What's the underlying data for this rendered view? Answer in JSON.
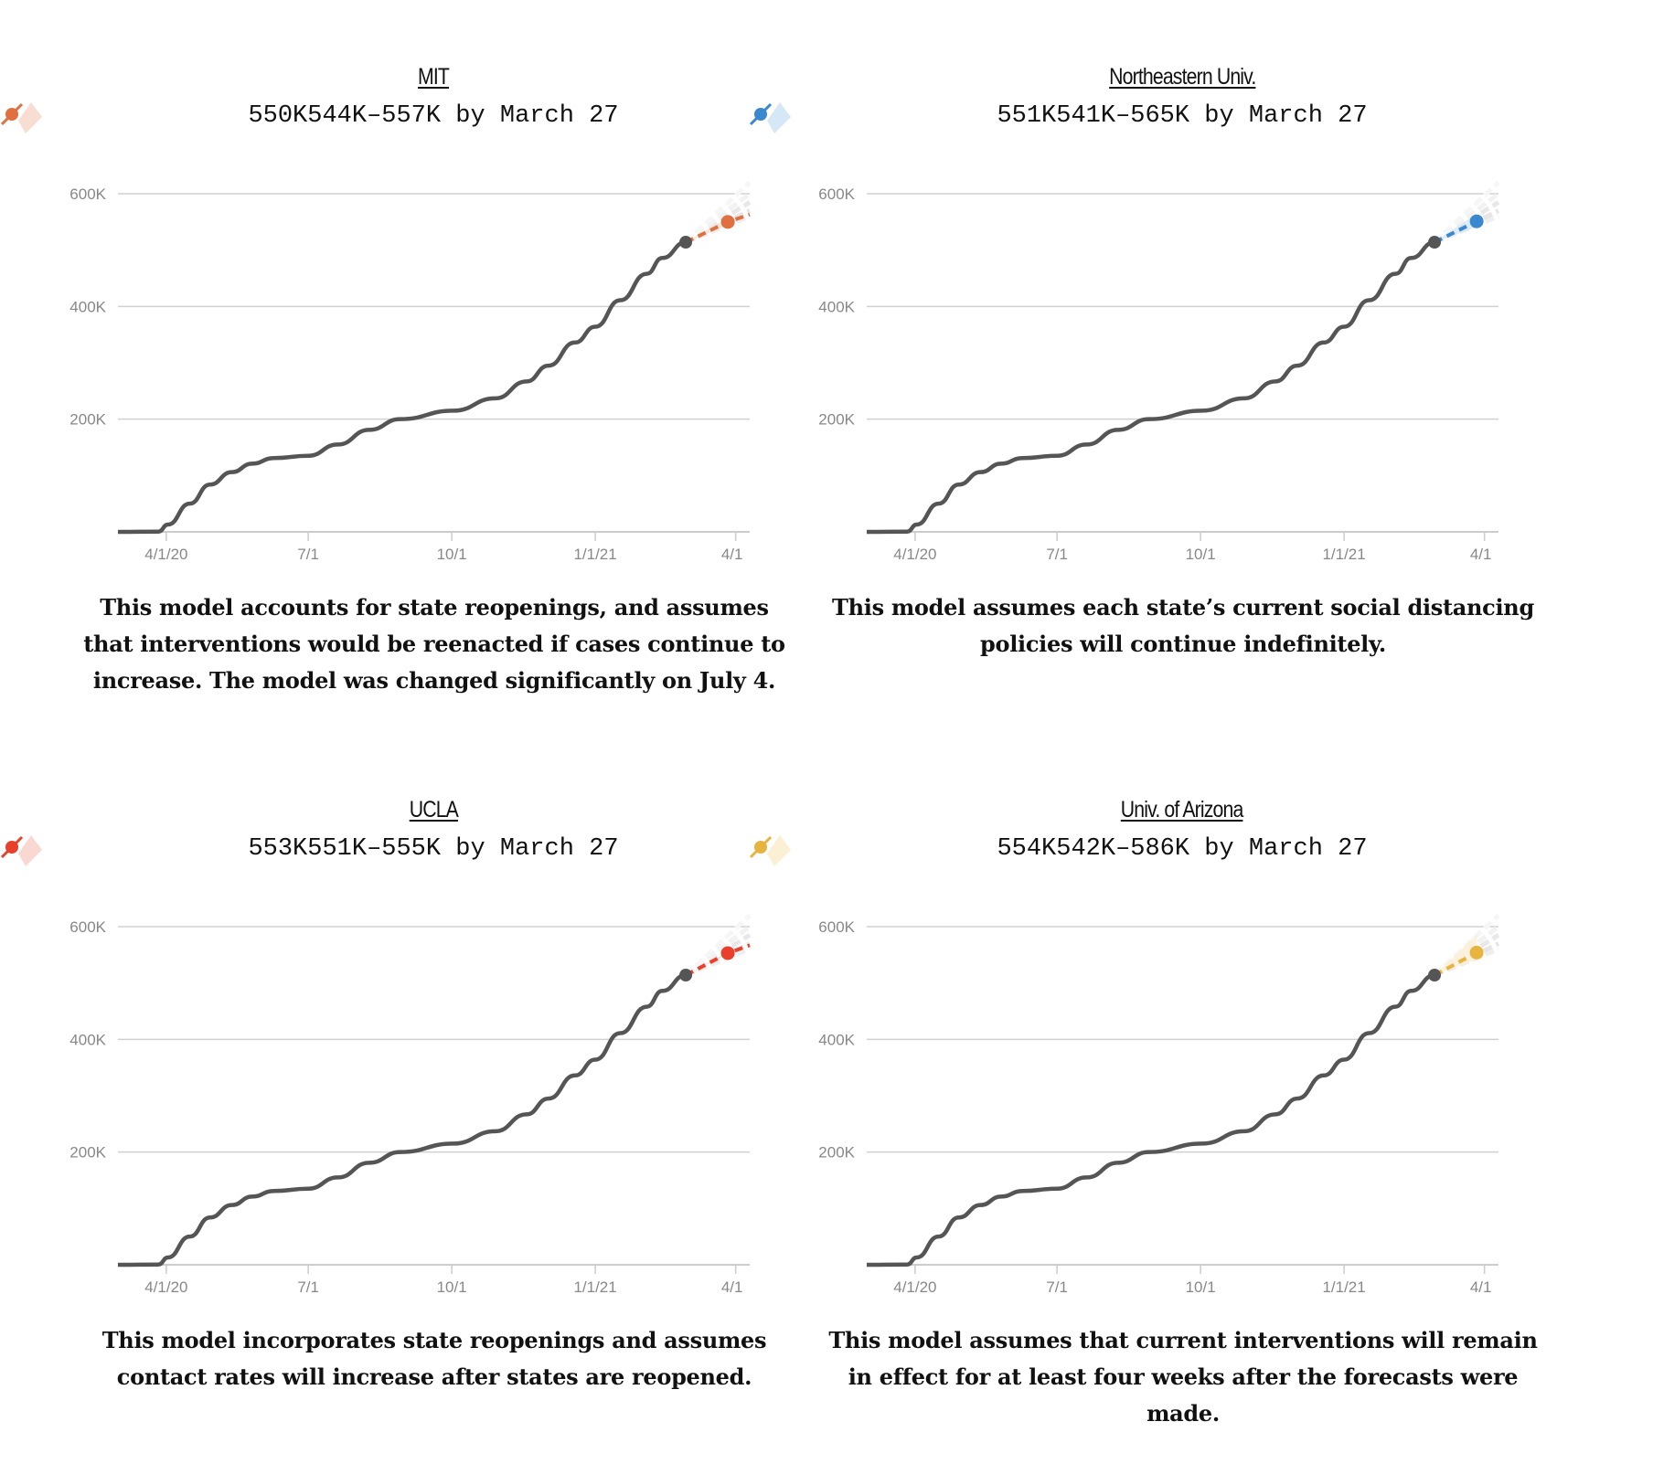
{
  "observed": {
    "dates": [
      "2020-03-01",
      "2020-03-27",
      "2020-04-02",
      "2020-04-16",
      "2020-04-29",
      "2020-05-13",
      "2020-05-26",
      "2020-06-09",
      "2020-07-01",
      "2020-07-20",
      "2020-08-09",
      "2020-08-29",
      "2020-10-02",
      "2020-10-29",
      "2020-11-18",
      "2020-12-02",
      "2020-12-19",
      "2021-01-01",
      "2021-01-17",
      "2021-02-03",
      "2021-02-13",
      "2021-02-28"
    ],
    "values_k": [
      0,
      0.5,
      13,
      50,
      84,
      106,
      121,
      131,
      135,
      155,
      181,
      200,
      215,
      237,
      267,
      295,
      336,
      364,
      411,
      458,
      486,
      514
    ]
  },
  "chart_data": [
    {
      "type": "line",
      "title": "MIT",
      "color": "#e07040",
      "light": "#f8ddd2",
      "point_label": "550K",
      "range_label": "544K–557K by March 27",
      "forecast_date": "2021-03-27",
      "forecast_k": 550,
      "low_k": 544,
      "high_k": 557,
      "extend_date": "2021-04-10",
      "extend_k": 563,
      "caption": "This model accounts for state reopenings, and assumes that interventions would be reenacted if cases continue to increase. The model was changed significantly on July 4.",
      "x_ticks": [
        "4/1/20",
        "7/1",
        "10/1",
        "1/1/21",
        "4/1"
      ],
      "y_ticks": [
        "200K",
        "400K",
        "600K"
      ],
      "ylim": [
        0,
        600
      ]
    },
    {
      "type": "line",
      "title": "Northeastern Univ.",
      "color": "#3a88d0",
      "light": "#d6e7f6",
      "point_label": "551K",
      "range_label": "541K–565K by March 27",
      "forecast_date": "2021-03-27",
      "forecast_k": 551,
      "low_k": 541,
      "high_k": 565,
      "caption": "This model assumes each state’s current social distancing policies will continue indefinitely.",
      "x_ticks": [
        "4/1/20",
        "7/1",
        "10/1",
        "1/1/21",
        "4/1"
      ],
      "y_ticks": [
        "200K",
        "400K",
        "600K"
      ],
      "ylim": [
        0,
        600
      ]
    },
    {
      "type": "line",
      "title": "UCLA",
      "color": "#e8402a",
      "light": "#f9d8d2",
      "point_label": "553K",
      "range_label": "551K–555K by March 27",
      "forecast_date": "2021-03-27",
      "forecast_k": 553,
      "low_k": 551,
      "high_k": 555,
      "extend_date": "2021-04-10",
      "extend_k": 567,
      "caption": "This model incorporates state reopenings and assumes contact rates will increase after states are reopened.",
      "x_ticks": [
        "4/1/20",
        "7/1",
        "10/1",
        "1/1/21",
        "4/1"
      ],
      "y_ticks": [
        "200K",
        "400K",
        "600K"
      ],
      "ylim": [
        0,
        600
      ]
    },
    {
      "type": "line",
      "title": "Univ. of Arizona",
      "color": "#e8b440",
      "light": "#fbefd4",
      "point_label": "554K",
      "range_label": "542K–586K by March 27",
      "forecast_date": "2021-03-27",
      "forecast_k": 554,
      "low_k": 542,
      "high_k": 586,
      "caption": "This model assumes that current interventions will remain in effect for at least four weeks after the forecasts were made.",
      "x_ticks": [
        "4/1/20",
        "7/1",
        "10/1",
        "1/1/21",
        "4/1"
      ],
      "y_ticks": [
        "200K",
        "400K",
        "600K"
      ],
      "ylim": [
        0,
        600
      ]
    }
  ]
}
